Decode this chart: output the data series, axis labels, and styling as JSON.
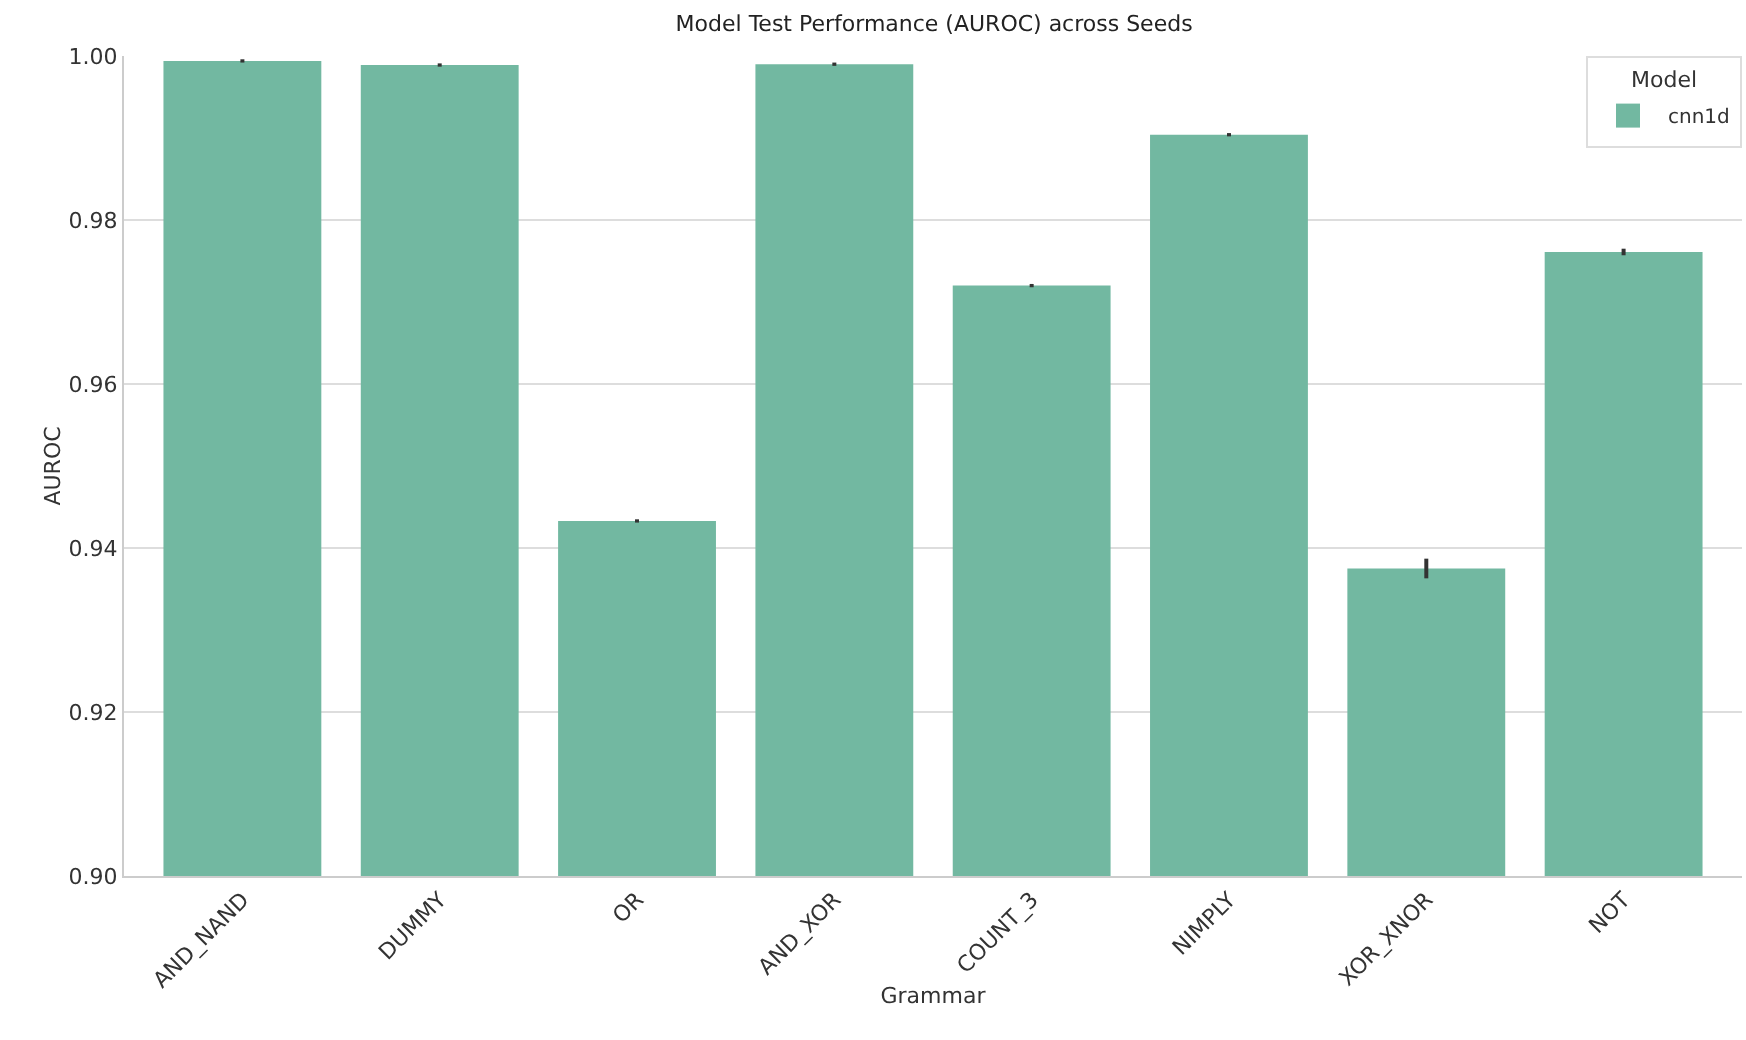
{
  "chart_data": {
    "type": "bar",
    "title": "Model Test Performance (AUROC) across Seeds",
    "xlabel": "Grammar",
    "ylabel": "AUROC",
    "legend_title": "Model",
    "categories": [
      "AND_NAND",
      "DUMMY",
      "OR",
      "AND_XOR",
      "COUNT_3",
      "NIMPLY",
      "XOR_XNOR",
      "NOT"
    ],
    "series": [
      {
        "name": "cnn1d",
        "color": "#72b8a1",
        "values": [
          0.9994,
          0.9989,
          0.9433,
          0.999,
          0.972,
          0.9904,
          0.9375,
          0.9761
        ],
        "errors": [
          0.0002,
          0.0002,
          0.0002,
          0.0002,
          0.0002,
          0.0002,
          0.0012,
          0.0004
        ]
      }
    ],
    "ylim": [
      0.9,
      1.0
    ],
    "yticks": [
      {
        "value": 0.9,
        "label": "0.90"
      },
      0.92,
      0.94,
      0.96,
      0.98,
      {
        "value": 1.0,
        "label": "1.00"
      }
    ],
    "grid": "y",
    "legend": "top right"
  }
}
